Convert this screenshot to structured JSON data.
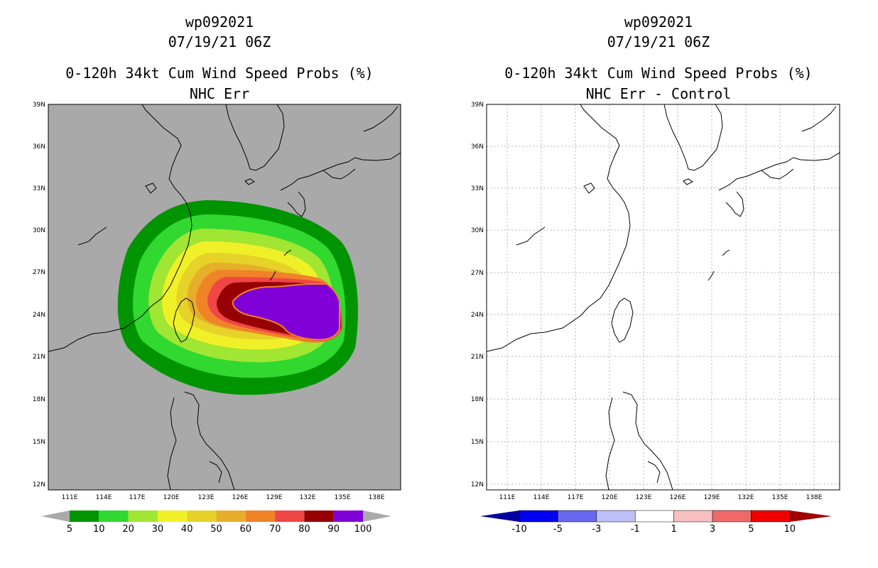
{
  "panels": [
    {
      "storm_id": "wp092021",
      "datetime": "07/19/21 06Z",
      "title": "0-120h 34kt Cum Wind Speed Probs (%)",
      "subtitle": "NHC Err",
      "background": "#a9a9a9",
      "lat_labels": [
        "39N",
        "36N",
        "33N",
        "30N",
        "27N",
        "24N",
        "21N",
        "18N",
        "15N",
        "12N"
      ],
      "lon_labels": [
        "111E",
        "114E",
        "117E",
        "120E",
        "123E",
        "126E",
        "129E",
        "132E",
        "135E",
        "138E"
      ],
      "colorbar": {
        "colors": [
          "#009400",
          "#30d830",
          "#a0e632",
          "#f0f028",
          "#e6d228",
          "#e6ae2a",
          "#f08228",
          "#f04646",
          "#960000",
          "#8000d8"
        ],
        "labels": [
          "5",
          "10",
          "20",
          "30",
          "40",
          "50",
          "60",
          "70",
          "80",
          "90",
          "100"
        ]
      }
    },
    {
      "storm_id": "wp092021",
      "datetime": "07/19/21 06Z",
      "title": "0-120h 34kt Cum Wind Speed Probs (%)",
      "subtitle": "NHC Err - Control",
      "background": "#ffffff",
      "lat_labels": [
        "39N",
        "36N",
        "33N",
        "30N",
        "27N",
        "24N",
        "21N",
        "18N",
        "15N",
        "12N"
      ],
      "lon_labels": [
        "111E",
        "114E",
        "117E",
        "120E",
        "123E",
        "126E",
        "129E",
        "132E",
        "135E",
        "138E"
      ],
      "colorbar": {
        "colors": [
          "#0000a0",
          "#0000f0",
          "#6868f0",
          "#c0c0f8",
          "#ffffff",
          "#f8c0c0",
          "#f06868",
          "#f00000",
          "#a00000"
        ],
        "labels": [
          "-10",
          "-5",
          "-3",
          "-1",
          "1",
          "3",
          "5",
          "10"
        ]
      }
    }
  ]
}
